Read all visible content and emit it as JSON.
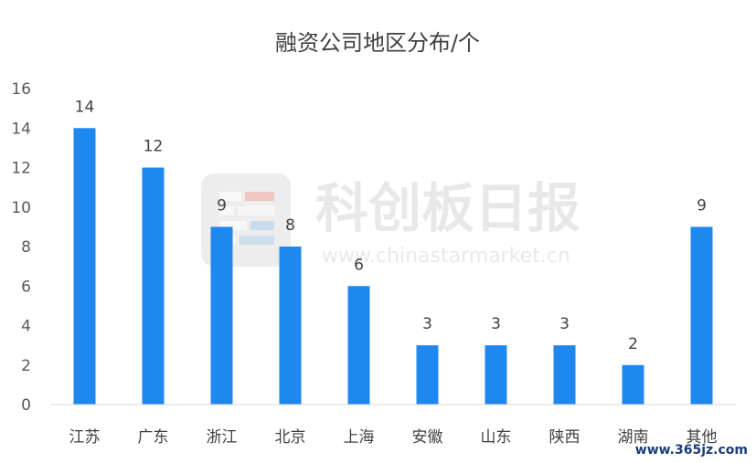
{
  "chart_data": {
    "type": "bar",
    "title": "融资公司地区分布/个",
    "categories": [
      "江苏",
      "广东",
      "浙江",
      "北京",
      "上海",
      "安徽",
      "山东",
      "陕西",
      "湖南",
      "其他"
    ],
    "values": [
      14,
      12,
      9,
      8,
      6,
      3,
      3,
      3,
      2,
      9
    ],
    "yticks": [
      "0",
      "2",
      "4",
      "6",
      "8",
      "10",
      "12",
      "14",
      "16"
    ],
    "ylim": [
      0,
      16
    ],
    "xlabel": "",
    "ylabel": "",
    "grid": false,
    "data_labels": true,
    "bar_color": "#1e88f0"
  },
  "watermark": {
    "text": "科创板日报",
    "url": "www.chinastarmarket.cn",
    "icon": "logo-tile-icon"
  },
  "corner_watermark": "www.365jz.com"
}
